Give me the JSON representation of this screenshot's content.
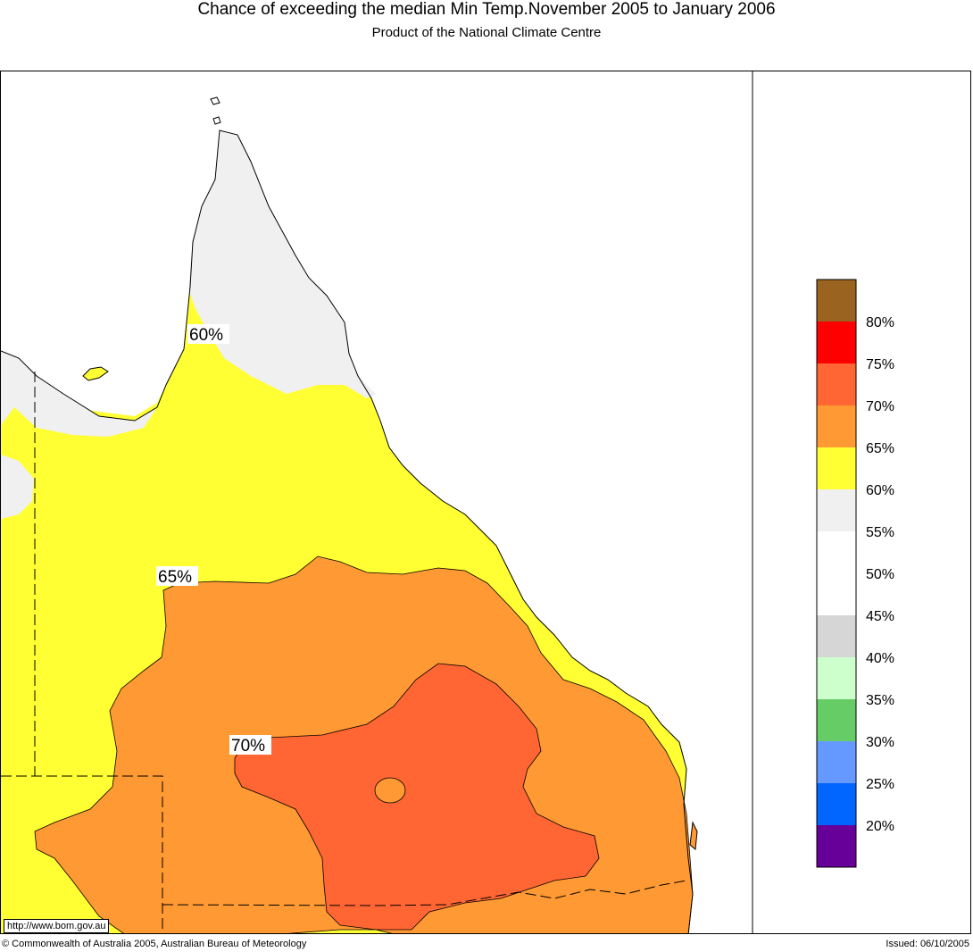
{
  "header": {
    "title": "Chance of exceeding the median Min Temp.November 2005 to January 2006",
    "subtitle": "Product of the National Climate Centre"
  },
  "map": {
    "contour_labels": [
      "60%",
      "65%",
      "70%"
    ],
    "url": "http://www.bom.gov.au"
  },
  "legend": {
    "colors": [
      "#9a6420",
      "#ff0000",
      "#ff6633",
      "#ff9933",
      "#ffff33",
      "#f0f0f0",
      "#ffffff",
      "#ffffff",
      "#d6d6d6",
      "#ccffcc",
      "#66cc66",
      "#6699ff",
      "#0066ff",
      "#660099"
    ],
    "labels": [
      "80%",
      "75%",
      "70%",
      "65%",
      "60%",
      "55%",
      "50%",
      "45%",
      "40%",
      "35%",
      "30%",
      "25%",
      "20%"
    ]
  },
  "footer": {
    "copyright": "© Commonwealth of Australia 2005, Australian Bureau of Meteorology",
    "issued": "Issued: 06/10/2005"
  }
}
